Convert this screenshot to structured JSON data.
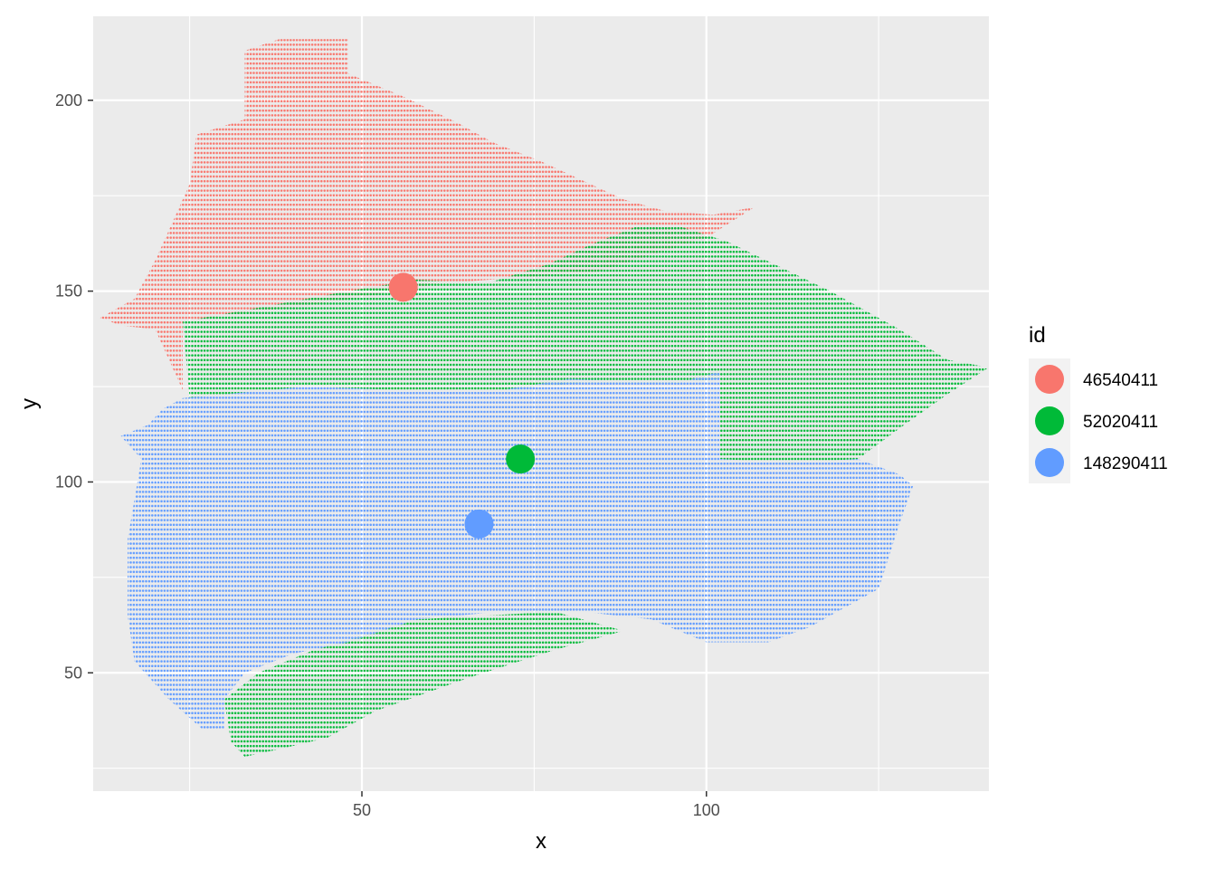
{
  "chart_data": {
    "type": "scatter",
    "title": "",
    "xlabel": "x",
    "ylabel": "y",
    "xlim": [
      11,
      141
    ],
    "ylim": [
      19,
      222
    ],
    "x_ticks": [
      50,
      100
    ],
    "y_ticks": [
      50,
      100,
      150,
      200
    ],
    "grid": true,
    "legend": {
      "title": "id",
      "placement": "right"
    },
    "colors": {
      "46540411": "#F8766D",
      "52020411": "#00BA38",
      "148290411": "#619CFF"
    },
    "series": [
      {
        "name": "46540411",
        "color": "#F8766D",
        "region_outline": [
          [
            12,
            143
          ],
          [
            17,
            148
          ],
          [
            20,
            158
          ],
          [
            22,
            166
          ],
          [
            25,
            178
          ],
          [
            26,
            191
          ],
          [
            33,
            195
          ],
          [
            33,
            213
          ],
          [
            38,
            216
          ],
          [
            48,
            216
          ],
          [
            48,
            207
          ],
          [
            56,
            201
          ],
          [
            64,
            194
          ],
          [
            69,
            189
          ],
          [
            76,
            184
          ],
          [
            82,
            179
          ],
          [
            88,
            174
          ],
          [
            94,
            171
          ],
          [
            101,
            170
          ],
          [
            107,
            172
          ],
          [
            100,
            164
          ],
          [
            84,
            155
          ],
          [
            61,
            152
          ],
          [
            55,
            150
          ],
          [
            45,
            147
          ],
          [
            32,
            144
          ],
          [
            24,
            142
          ],
          [
            24,
            124
          ],
          [
            22,
            132
          ],
          [
            20,
            140
          ],
          [
            15,
            141
          ]
        ],
        "centroid": {
          "x": 56,
          "y": 151
        }
      },
      {
        "name": "52020411",
        "color": "#00BA38",
        "region_outline": [
          [
            24,
            142
          ],
          [
            33,
            145
          ],
          [
            48,
            150
          ],
          [
            58,
            153
          ],
          [
            68,
            152
          ],
          [
            77,
            157
          ],
          [
            83,
            162
          ],
          [
            90,
            167
          ],
          [
            96,
            167
          ],
          [
            103,
            163
          ],
          [
            118,
            150
          ],
          [
            128,
            140
          ],
          [
            135,
            132
          ],
          [
            141,
            130
          ],
          [
            135,
            123
          ],
          [
            128,
            114
          ],
          [
            122,
            106
          ],
          [
            112,
            105
          ],
          [
            102,
            106
          ],
          [
            102,
            127
          ],
          [
            96,
            126
          ],
          [
            82,
            126
          ],
          [
            70,
            124
          ],
          [
            56,
            124
          ],
          [
            42,
            125
          ],
          [
            25,
            122
          ]
        ],
        "extra_region_outline": [
          [
            30,
            43
          ],
          [
            35,
            50
          ],
          [
            43,
            56
          ],
          [
            58,
            64
          ],
          [
            78,
            66
          ],
          [
            88,
            61
          ],
          [
            78,
            56
          ],
          [
            66,
            49
          ],
          [
            52,
            40
          ],
          [
            45,
            33
          ],
          [
            38,
            30
          ],
          [
            33,
            28
          ],
          [
            31,
            32
          ]
        ],
        "centroid": {
          "x": 73,
          "y": 106
        }
      },
      {
        "name": "148290411",
        "color": "#619CFF",
        "region_outline": [
          [
            15,
            112
          ],
          [
            19,
            115
          ],
          [
            21,
            119
          ],
          [
            24,
            122
          ],
          [
            42,
            125
          ],
          [
            56,
            124
          ],
          [
            70,
            124
          ],
          [
            80,
            127
          ],
          [
            96,
            126
          ],
          [
            102,
            129
          ],
          [
            102,
            106
          ],
          [
            112,
            105
          ],
          [
            122,
            106
          ],
          [
            128,
            102
          ],
          [
            130,
            99
          ],
          [
            128,
            89
          ],
          [
            125,
            72
          ],
          [
            115,
            62
          ],
          [
            109,
            58
          ],
          [
            100,
            58
          ],
          [
            92,
            64
          ],
          [
            82,
            66
          ],
          [
            70,
            66
          ],
          [
            58,
            64
          ],
          [
            48,
            58
          ],
          [
            40,
            55
          ],
          [
            33,
            50
          ],
          [
            30,
            43
          ],
          [
            30,
            35
          ],
          [
            27,
            35
          ],
          [
            22,
            43
          ],
          [
            17,
            53
          ],
          [
            16,
            65
          ],
          [
            16,
            85
          ],
          [
            18,
            106
          ]
        ],
        "centroid": {
          "x": 67,
          "y": 89
        }
      }
    ]
  }
}
